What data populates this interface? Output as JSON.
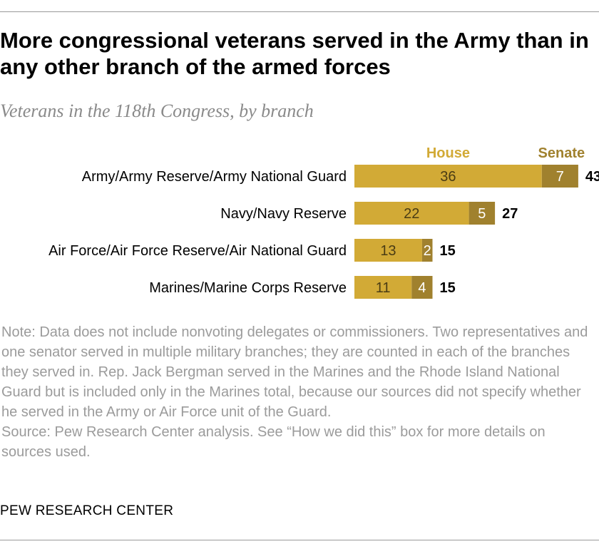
{
  "header": {
    "title": "More congressional veterans served in the Army than in any other branch of the armed forces",
    "subtitle": "Veterans in the 118th Congress, by branch"
  },
  "chart_data": {
    "type": "bar",
    "stacked": true,
    "orientation": "horizontal",
    "categories": [
      "Army/Army Reserve/Army National Guard",
      "Navy/Navy Reserve",
      "Air Force/Air Force Reserve/Air National Guard",
      "Marines/Marine Corps Reserve"
    ],
    "series": [
      {
        "name": "House",
        "values": [
          36,
          22,
          13,
          11
        ],
        "color": "#d2aa36"
      },
      {
        "name": "Senate",
        "values": [
          7,
          5,
          2,
          4
        ],
        "color": "#a0812e"
      }
    ],
    "totals": [
      "43",
      "27",
      "15",
      "15"
    ],
    "legend_position": "top",
    "grid": false
  },
  "footer": {
    "note": "Note: Data does not include nonvoting delegates or commissioners. Two representatives and one senator served in multiple military branches; they are counted in each of the branches they served in. Rep. Jack Bergman served in the Marines and the Rhode Island National Guard but is included only in the Marines total, because our sources did not specify whether he served in the Army or Air Force unit of the Guard.",
    "source": "Source: Pew Research Center analysis. See “How we did this” box for more details on sources used.",
    "credit": "PEW RESEARCH CENTER"
  }
}
